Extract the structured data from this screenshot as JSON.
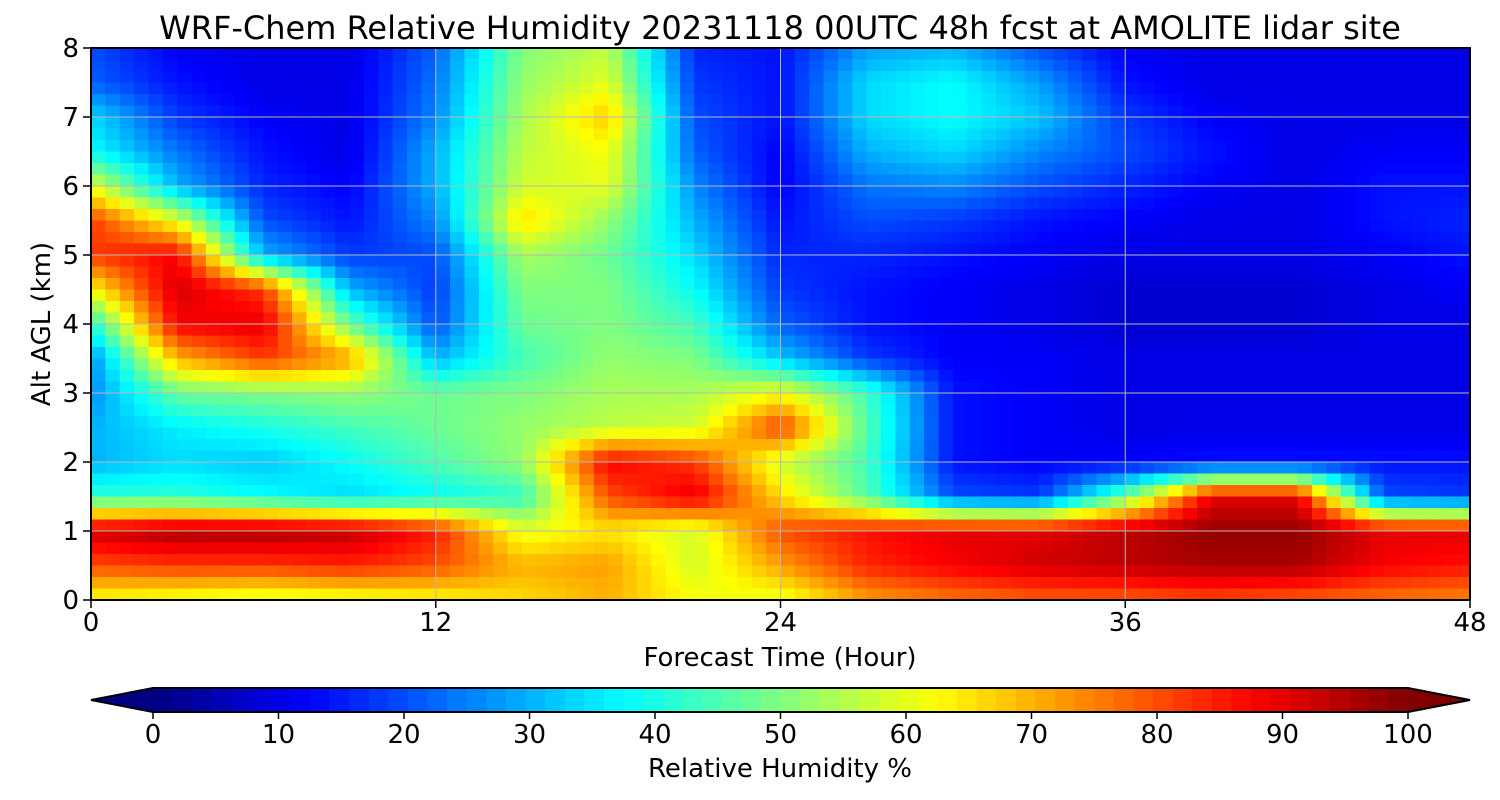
{
  "chart_data": {
    "type": "heatmap",
    "title": "WRF-Chem Relative Humidity 20231118 00UTC 48h fcst at AMOLITE lidar site",
    "xlabel": "Forecast Time (Hour)",
    "ylabel": "Alt AGL (km)",
    "xlim": [
      0,
      48
    ],
    "ylim": [
      0,
      8
    ],
    "x_ticks": [
      0,
      12,
      24,
      36,
      48
    ],
    "y_ticks": [
      0,
      1,
      2,
      3,
      4,
      5,
      6,
      7,
      8
    ],
    "grid": true,
    "x": [
      0,
      3,
      6,
      9,
      12,
      15,
      18,
      21,
      24,
      27,
      30,
      33,
      36,
      39,
      42,
      45,
      48
    ],
    "y": [
      0,
      0.5,
      1,
      1.5,
      2,
      2.5,
      3,
      3.5,
      4,
      4.5,
      5,
      5.5,
      6,
      6.5,
      7,
      7.5,
      8
    ],
    "z": [
      [
        62,
        60,
        58,
        60,
        62,
        66,
        70,
        62,
        60,
        72,
        76,
        78,
        78,
        80,
        78,
        76,
        74
      ],
      [
        80,
        82,
        82,
        84,
        80,
        70,
        72,
        58,
        72,
        84,
        88,
        92,
        94,
        96,
        96,
        88,
        86
      ],
      [
        92,
        96,
        96,
        94,
        85,
        60,
        65,
        58,
        80,
        86,
        90,
        90,
        94,
        98,
        98,
        90,
        90
      ],
      [
        42,
        42,
        38,
        34,
        38,
        42,
        80,
        90,
        66,
        46,
        20,
        18,
        48,
        90,
        90,
        20,
        18
      ],
      [
        30,
        34,
        32,
        38,
        45,
        52,
        88,
        82,
        58,
        44,
        14,
        12,
        12,
        14,
        14,
        14,
        14
      ],
      [
        30,
        36,
        40,
        44,
        48,
        52,
        56,
        58,
        82,
        46,
        14,
        12,
        10,
        10,
        10,
        10,
        10
      ],
      [
        26,
        48,
        50,
        52,
        48,
        50,
        54,
        54,
        62,
        44,
        14,
        12,
        10,
        10,
        10,
        10,
        10
      ],
      [
        26,
        70,
        82,
        72,
        30,
        44,
        52,
        50,
        32,
        18,
        12,
        12,
        10,
        10,
        10,
        10,
        10
      ],
      [
        40,
        88,
        90,
        48,
        20,
        48,
        50,
        44,
        22,
        14,
        12,
        10,
        8,
        8,
        8,
        10,
        10
      ],
      [
        62,
        92,
        82,
        30,
        18,
        50,
        50,
        38,
        18,
        14,
        12,
        10,
        8,
        8,
        8,
        10,
        12
      ],
      [
        82,
        88,
        30,
        18,
        20,
        54,
        48,
        34,
        16,
        16,
        14,
        12,
        10,
        10,
        10,
        12,
        14
      ],
      [
        82,
        60,
        20,
        14,
        26,
        66,
        52,
        30,
        14,
        20,
        18,
        14,
        12,
        10,
        10,
        14,
        16
      ],
      [
        60,
        30,
        16,
        12,
        30,
        58,
        60,
        26,
        12,
        24,
        26,
        20,
        16,
        12,
        10,
        14,
        14
      ],
      [
        38,
        24,
        14,
        10,
        30,
        56,
        62,
        22,
        12,
        30,
        34,
        26,
        20,
        14,
        10,
        12,
        12
      ],
      [
        34,
        18,
        12,
        10,
        26,
        54,
        68,
        20,
        14,
        34,
        38,
        32,
        18,
        12,
        10,
        10,
        10
      ],
      [
        22,
        14,
        10,
        10,
        24,
        52,
        60,
        18,
        14,
        34,
        38,
        28,
        14,
        10,
        10,
        10,
        10
      ],
      [
        20,
        12,
        10,
        10,
        22,
        50,
        56,
        16,
        14,
        28,
        30,
        20,
        12,
        10,
        10,
        10,
        10
      ]
    ],
    "colorbar": {
      "label": "Relative Humidity %",
      "min": 0,
      "max": 100,
      "ticks": [
        0,
        10,
        20,
        30,
        40,
        50,
        60,
        70,
        80,
        90,
        100
      ],
      "colormap": "jet",
      "extend": "both"
    }
  }
}
